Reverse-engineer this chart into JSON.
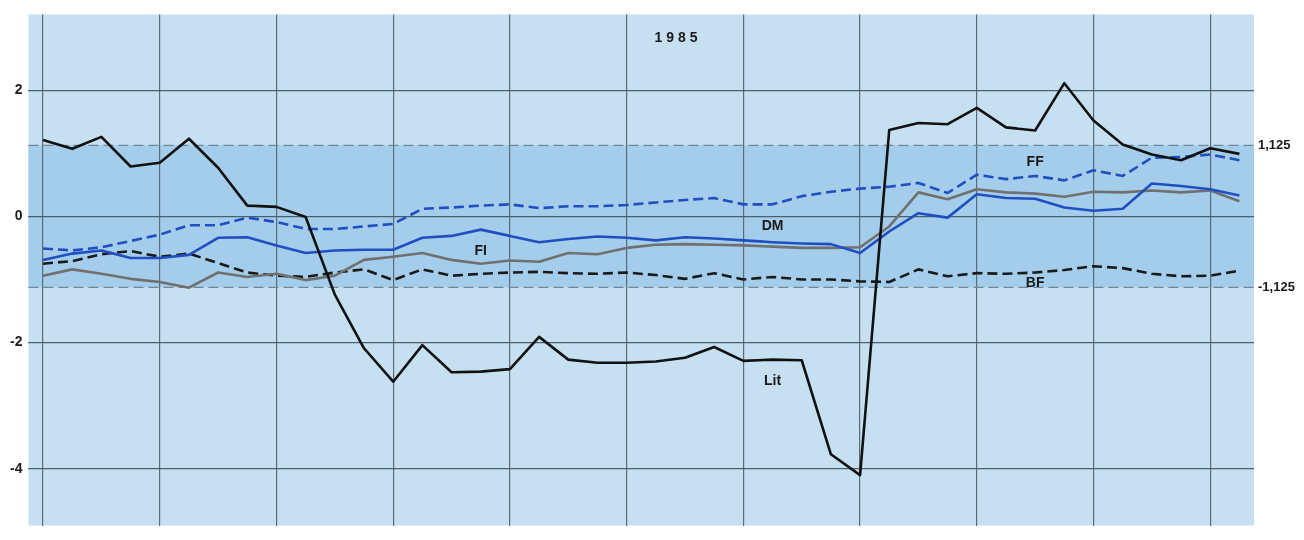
{
  "chart_data": {
    "type": "line",
    "title": "1985",
    "categories": [
      null,
      null,
      null,
      null,
      null,
      null,
      null,
      null,
      null,
      null,
      null,
      null,
      null,
      null,
      null,
      null,
      null,
      null,
      null,
      null,
      null,
      null,
      null,
      null,
      null,
      null,
      null,
      null,
      null,
      null,
      null,
      null,
      null,
      null,
      null,
      null,
      null,
      null,
      null,
      null,
      null,
      null
    ],
    "series": [
      {
        "name": "Lit",
        "color": "#111111",
        "line_style": "solid",
        "values": [
          1.21,
          1.07,
          1.26,
          0.79,
          0.85,
          1.23,
          0.77,
          0.17,
          0.15,
          -0.01,
          -1.24,
          -2.09,
          -2.62,
          -2.04,
          -2.47,
          -2.46,
          -2.42,
          -1.91,
          -2.27,
          -2.32,
          -2.32,
          -2.3,
          -2.24,
          -2.07,
          -2.29,
          -2.27,
          -2.28,
          -3.77,
          -4.1,
          1.37,
          1.48,
          1.46,
          1.72,
          1.41,
          1.36,
          2.11,
          1.52,
          1.14,
          0.98,
          0.89,
          1.08,
          0.99
        ]
      },
      {
        "name": "FF",
        "color": "#1f4fc0",
        "line_style": "dashed",
        "values": [
          -0.51,
          -0.54,
          -0.49,
          -0.39,
          -0.29,
          -0.14,
          -0.14,
          -0.02,
          -0.09,
          -0.2,
          -0.2,
          -0.16,
          -0.12,
          0.12,
          0.14,
          0.17,
          0.19,
          0.13,
          0.16,
          0.16,
          0.18,
          0.22,
          0.26,
          0.29,
          0.19,
          0.19,
          0.32,
          0.39,
          0.44,
          0.47,
          0.53,
          0.37,
          0.66,
          0.59,
          0.64,
          0.57,
          0.73,
          0.64,
          0.93,
          0.94,
          0.98,
          0.89
        ]
      },
      {
        "name": "DM",
        "color": "#1f4fc0",
        "line_style": "solid",
        "values": [
          -0.69,
          -0.59,
          -0.54,
          -0.66,
          -0.66,
          -0.61,
          -0.34,
          -0.33,
          -0.46,
          -0.58,
          -0.54,
          -0.53,
          -0.53,
          -0.34,
          -0.31,
          -0.21,
          -0.31,
          -0.41,
          -0.36,
          -0.32,
          -0.34,
          -0.38,
          -0.33,
          -0.35,
          -0.38,
          -0.41,
          -0.43,
          -0.44,
          -0.58,
          -0.24,
          0.05,
          -0.02,
          0.35,
          0.29,
          0.28,
          0.14,
          0.09,
          0.12,
          0.52,
          0.48,
          0.43,
          0.33
        ]
      },
      {
        "name": "FI",
        "color": "#707070",
        "line_style": "solid",
        "values": [
          -0.94,
          -0.84,
          -0.91,
          -0.99,
          -1.04,
          -1.13,
          -0.89,
          -0.96,
          -0.91,
          -1.01,
          -0.94,
          -0.69,
          -0.64,
          -0.58,
          -0.69,
          -0.75,
          -0.7,
          -0.72,
          -0.58,
          -0.6,
          -0.5,
          -0.45,
          -0.44,
          -0.45,
          -0.46,
          -0.48,
          -0.5,
          -0.5,
          -0.49,
          -0.16,
          0.38,
          0.27,
          0.43,
          0.38,
          0.36,
          0.31,
          0.39,
          0.38,
          0.41,
          0.38,
          0.41,
          0.24
        ]
      },
      {
        "name": "BF",
        "color": "#1a1a1a",
        "line_style": "dashed",
        "values": [
          -0.75,
          -0.71,
          -0.6,
          -0.55,
          -0.64,
          -0.59,
          -0.74,
          -0.89,
          -0.94,
          -0.96,
          -0.89,
          -0.84,
          -1.01,
          -0.84,
          -0.94,
          -0.91,
          -0.89,
          -0.88,
          -0.9,
          -0.91,
          -0.89,
          -0.93,
          -0.99,
          -0.9,
          -1.0,
          -0.96,
          -1.0,
          -1.0,
          -1.03,
          -1.04,
          -0.84,
          -0.95,
          -0.9,
          -0.91,
          -0.89,
          -0.85,
          -0.79,
          -0.82,
          -0.91,
          -0.95,
          -0.94,
          -0.86
        ]
      }
    ],
    "ylim": [
      -4.9,
      3.2
    ],
    "yticks": [
      2,
      0,
      -2,
      -4
    ],
    "grid": true,
    "tick_labels": "y",
    "marker": "none",
    "ref_lines": [
      {
        "axis": "y",
        "value": 1.125,
        "label": "1,125",
        "color": "#6f8796",
        "line_style": "dashed"
      },
      {
        "axis": "y",
        "value": -1.125,
        "label": "-1,125",
        "color": "#6f8796",
        "line_style": "dashed"
      }
    ],
    "bands": [
      {
        "axis": "y",
        "from": -1.125,
        "to": 1.125,
        "color": "#a3cdea"
      }
    ]
  }
}
